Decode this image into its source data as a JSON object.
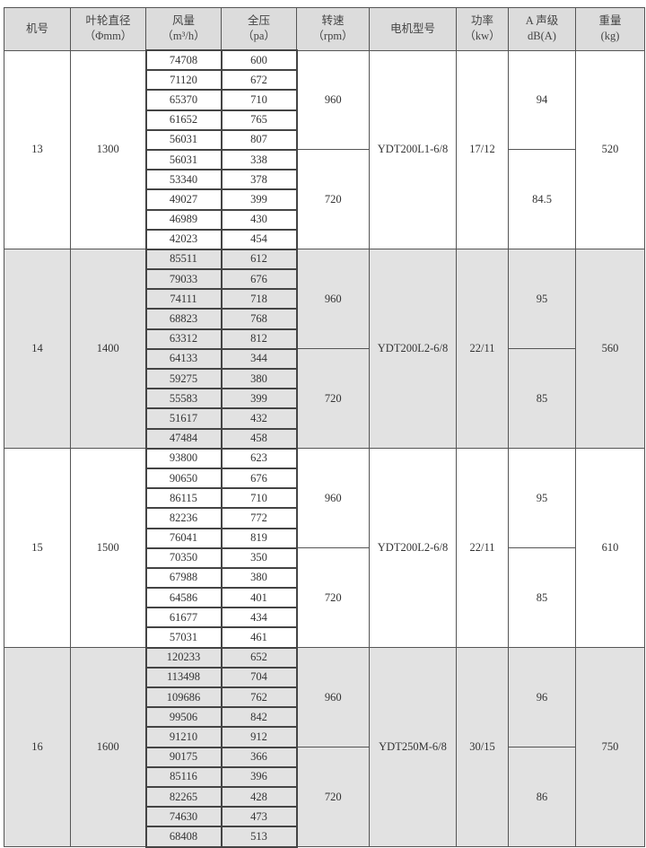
{
  "headers": [
    {
      "l1": "机号",
      "l2": ""
    },
    {
      "l1": "叶轮直径",
      "l2": "（Φmm）"
    },
    {
      "l1": "风量",
      "l2": "（m³/h）"
    },
    {
      "l1": "全压",
      "l2": "（pa）"
    },
    {
      "l1": "转速",
      "l2": "（rpm）"
    },
    {
      "l1": "电机型号",
      "l2": ""
    },
    {
      "l1": "功率",
      "l2": "（kw）"
    },
    {
      "l1": "A 声级",
      "l2": "dB(A)"
    },
    {
      "l1": "重量",
      "l2": "(kg)"
    }
  ],
  "groups": [
    {
      "model": "13",
      "diameter": "1300",
      "motor": "YDT200L1-6/8",
      "power": "17/12",
      "weight": "520",
      "speeds": [
        {
          "rpm": "960",
          "noise": "94"
        },
        {
          "rpm": "720",
          "noise": "84.5"
        }
      ],
      "rows": [
        [
          "74708",
          "600"
        ],
        [
          "71120",
          "672"
        ],
        [
          "65370",
          "710"
        ],
        [
          "61652",
          "765"
        ],
        [
          "56031",
          "807"
        ],
        [
          "56031",
          "338"
        ],
        [
          "53340",
          "378"
        ],
        [
          "49027",
          "399"
        ],
        [
          "46989",
          "430"
        ],
        [
          "42023",
          "454"
        ]
      ]
    },
    {
      "model": "14",
      "diameter": "1400",
      "motor": "YDT200L2-6/8",
      "power": "22/11",
      "weight": "560",
      "speeds": [
        {
          "rpm": "960",
          "noise": "95"
        },
        {
          "rpm": "720",
          "noise": "85"
        }
      ],
      "rows": [
        [
          "85511",
          "612"
        ],
        [
          "79033",
          "676"
        ],
        [
          "74111",
          "718"
        ],
        [
          "68823",
          "768"
        ],
        [
          "63312",
          "812"
        ],
        [
          "64133",
          "344"
        ],
        [
          "59275",
          "380"
        ],
        [
          "55583",
          "399"
        ],
        [
          "51617",
          "432"
        ],
        [
          "47484",
          "458"
        ]
      ]
    },
    {
      "model": "15",
      "diameter": "1500",
      "motor": "YDT200L2-6/8",
      "power": "22/11",
      "weight": "610",
      "speeds": [
        {
          "rpm": "960",
          "noise": "95"
        },
        {
          "rpm": "720",
          "noise": "85"
        }
      ],
      "rows": [
        [
          "93800",
          "623"
        ],
        [
          "90650",
          "676"
        ],
        [
          "86115",
          "710"
        ],
        [
          "82236",
          "772"
        ],
        [
          "76041",
          "819"
        ],
        [
          "70350",
          "350"
        ],
        [
          "67988",
          "380"
        ],
        [
          "64586",
          "401"
        ],
        [
          "61677",
          "434"
        ],
        [
          "57031",
          "461"
        ]
      ]
    },
    {
      "model": "16",
      "diameter": "1600",
      "motor": "YDT250M-6/8",
      "power": "30/15",
      "weight": "750",
      "speeds": [
        {
          "rpm": "960",
          "noise": "96"
        },
        {
          "rpm": "720",
          "noise": "86"
        }
      ],
      "rows": [
        [
          "120233",
          "652"
        ],
        [
          "113498",
          "704"
        ],
        [
          "109686",
          "762"
        ],
        [
          "99506",
          "842"
        ],
        [
          "91210",
          "912"
        ],
        [
          "90175",
          "366"
        ],
        [
          "85116",
          "396"
        ],
        [
          "82265",
          "428"
        ],
        [
          "74630",
          "473"
        ],
        [
          "68408",
          "513"
        ]
      ]
    }
  ]
}
